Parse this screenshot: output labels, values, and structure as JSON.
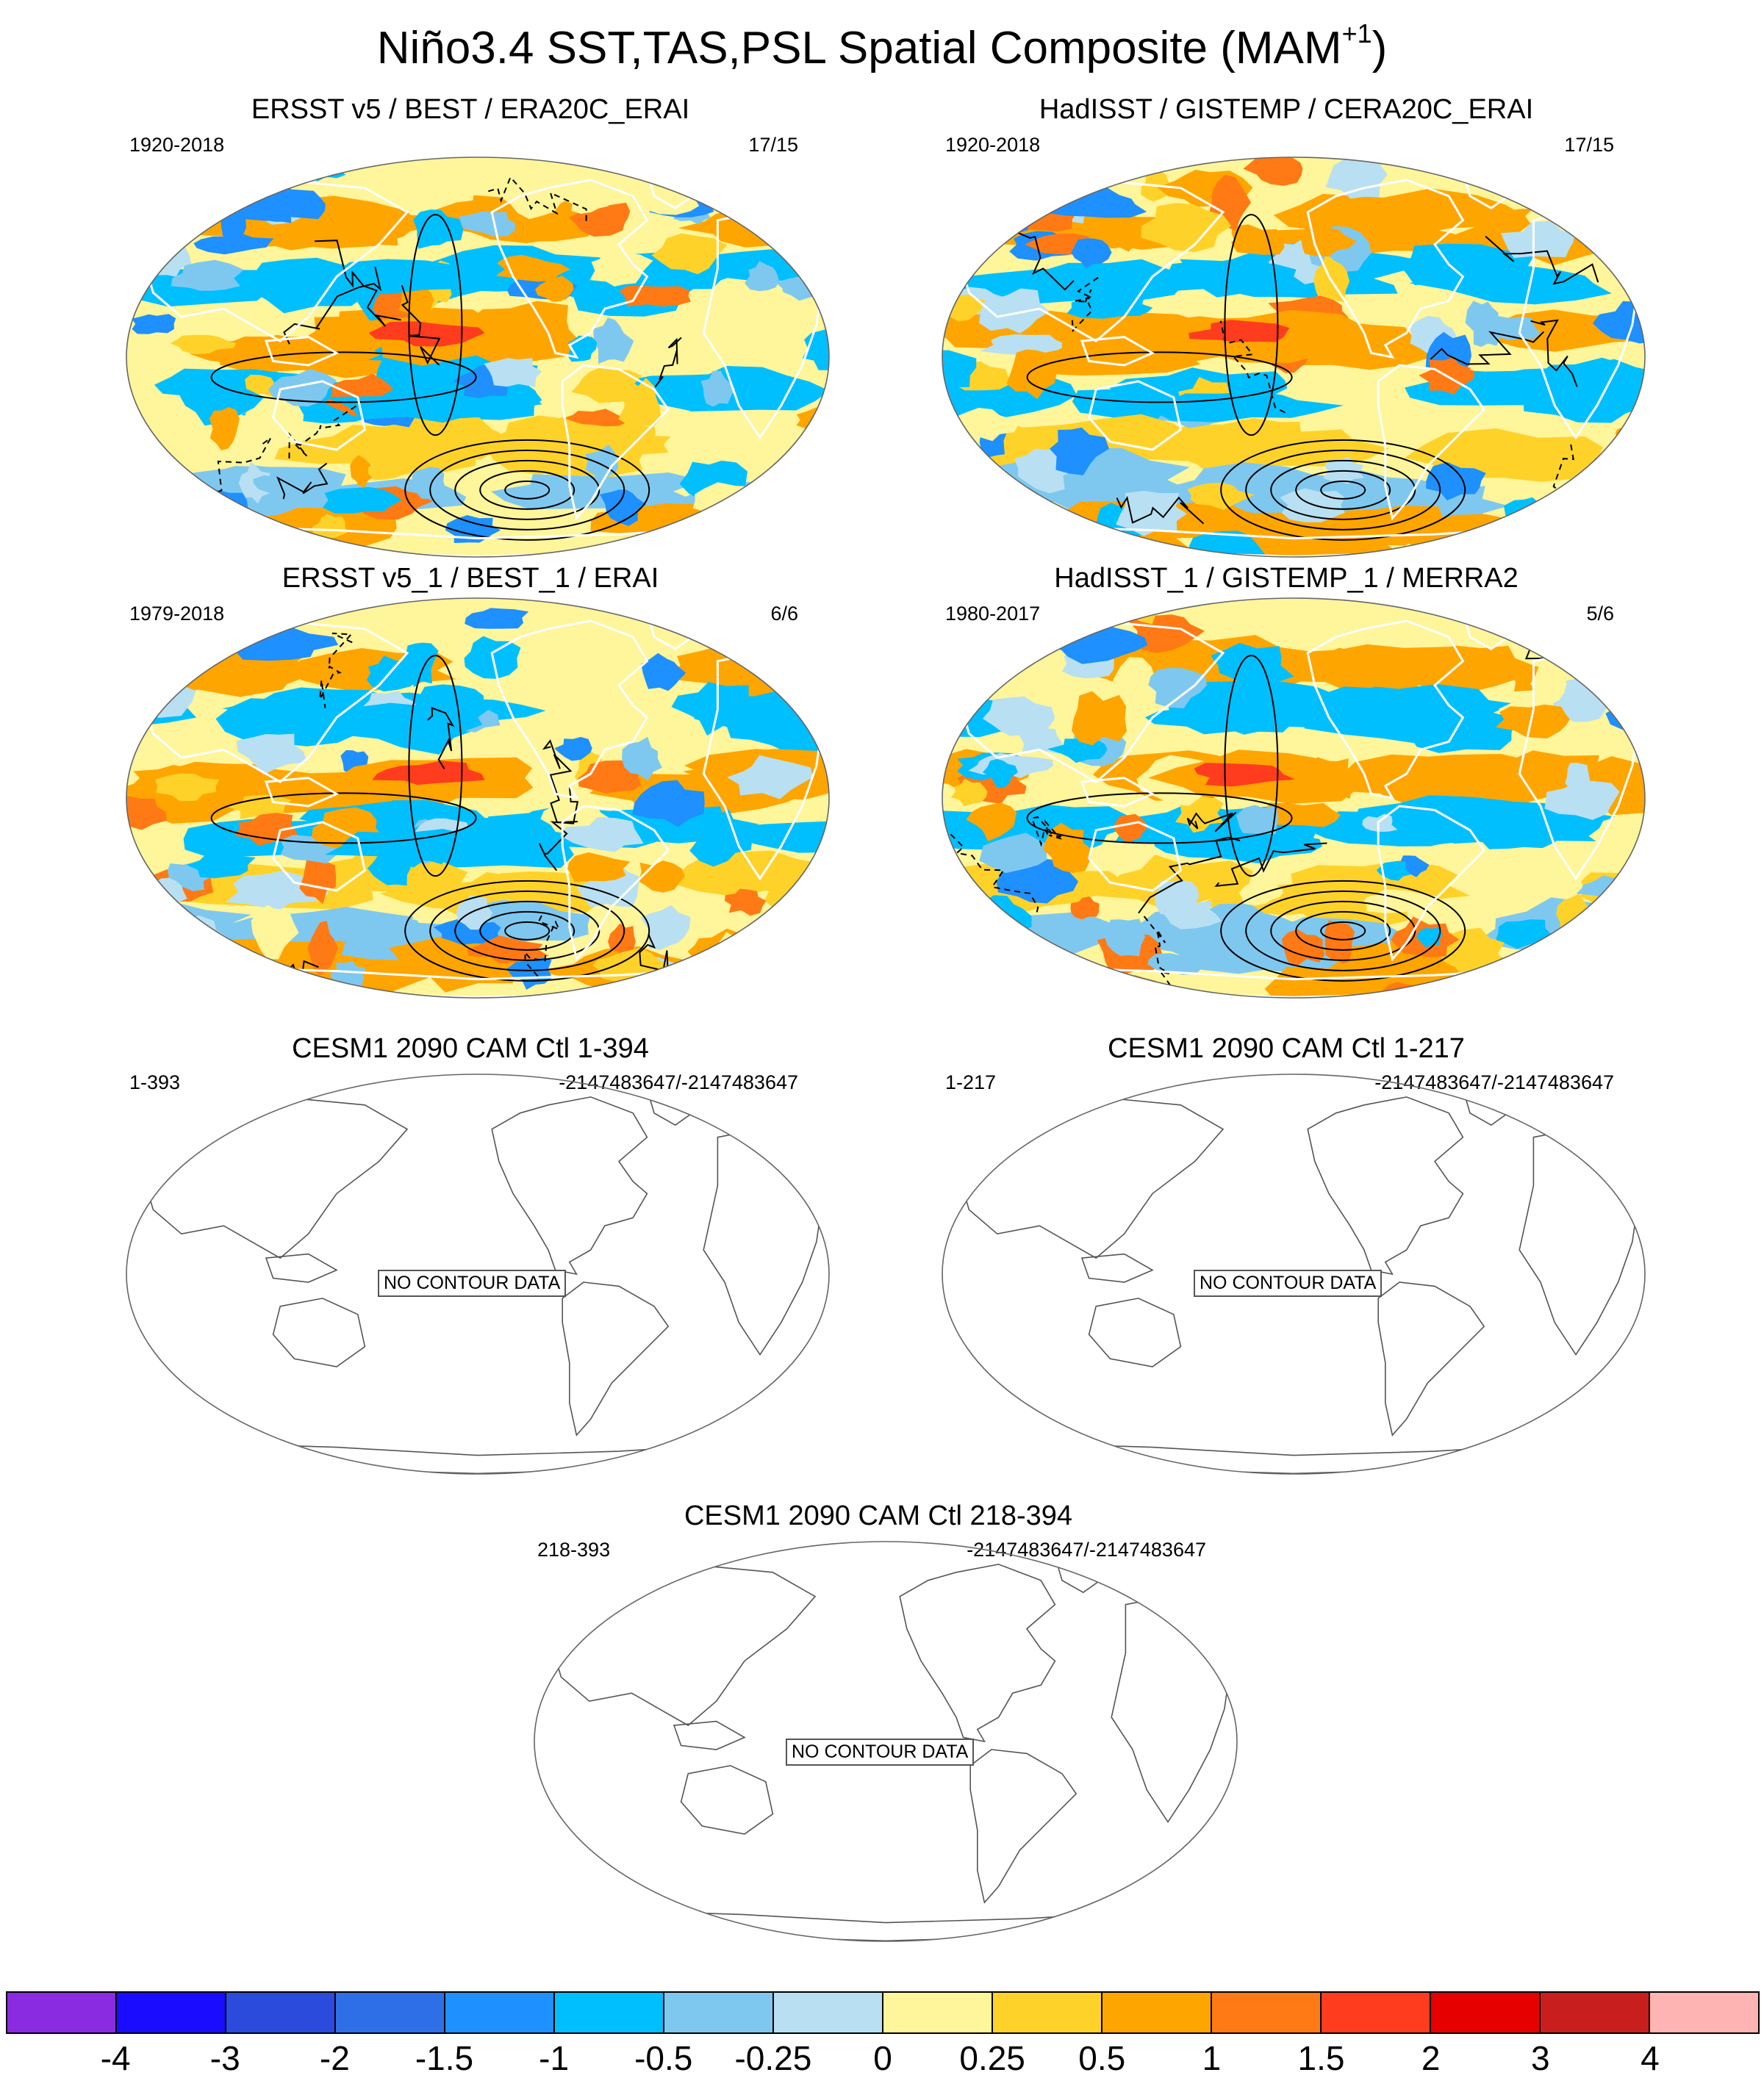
{
  "title": {
    "main": "Niño3.4 SST,TAS,PSL Spatial Composite (MAM",
    "sup": "+1",
    "close": ")"
  },
  "panels": [
    {
      "title": "ERSST v5 / BEST / ERA20C_ERAI",
      "left": "1920-2018",
      "right": "17/15",
      "filled": true,
      "variant": 0
    },
    {
      "title": "HadISST / GISTEMP / CERA20C_ERAI",
      "left": "1920-2018",
      "right": "17/15",
      "filled": true,
      "variant": 1
    },
    {
      "title": "ERSST v5_1 / BEST_1 / ERAI",
      "left": "1979-2018",
      "right": "6/6",
      "filled": true,
      "variant": 2
    },
    {
      "title": "HadISST_1 / GISTEMP_1 / MERRA2",
      "left": "1980-2017",
      "right": "5/6",
      "filled": true,
      "variant": 3
    },
    {
      "title": "CESM1 2090 CAM Ctl 1-394",
      "left": "1-393",
      "right": "-2147483647/-2147483647",
      "filled": false,
      "nodata": "NO CONTOUR DATA"
    },
    {
      "title": "CESM1 2090 CAM Ctl 1-217",
      "left": "1-217",
      "right": "-2147483647/-2147483647",
      "filled": false,
      "nodata": "NO CONTOUR DATA"
    },
    {
      "title": "CESM1 2090 CAM Ctl 218-394",
      "left": "218-393",
      "right": "-2147483647/-2147483647",
      "filled": false,
      "nodata": "NO CONTOUR DATA"
    }
  ],
  "colorbar": {
    "colors": [
      "#8a2be2",
      "#1a0dff",
      "#2a4bdb",
      "#2e6fe8",
      "#1e90ff",
      "#00bfff",
      "#7ec8f0",
      "#b8e0f2",
      "#fff59a",
      "#ffd22a",
      "#ffa500",
      "#ff7a14",
      "#ff3c1e",
      "#e60000",
      "#c81e1e",
      "#ffb4b4"
    ],
    "labels": [
      "-4",
      "-3",
      "-2",
      "-1.5",
      "-1",
      "-0.5",
      "-0.25",
      "0",
      "0.25",
      "0.5",
      "1",
      "1.5",
      "2",
      "3",
      "4"
    ]
  }
}
